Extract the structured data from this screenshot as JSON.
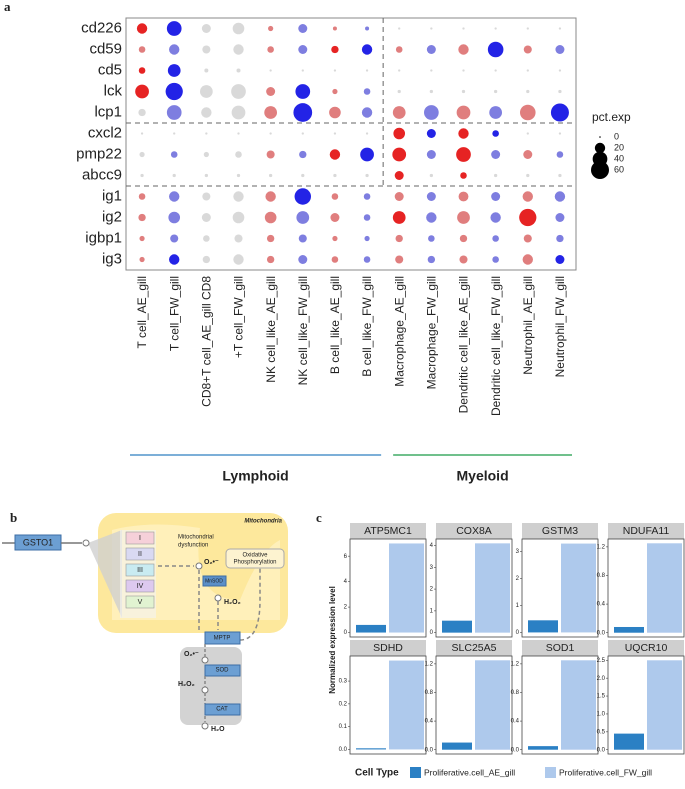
{
  "chart_data": [
    {
      "type": "dot",
      "panel_label": "a",
      "rows": [
        "cd226",
        "cd59",
        "cd5",
        "lck",
        "lcp1",
        "cxcl2",
        "pmp22",
        "abcc9",
        "ig1",
        "ig2",
        "igbp1",
        "ig3"
      ],
      "columns": [
        "T cell_AE_gill",
        "T cell_FW_gill",
        "CD8+T cell_AE_gill CD8",
        "+T cell_FW_gill",
        "NK cell_like_AE_gill",
        "NK cell_like_FW_gill",
        "B cell_like_AE_gill",
        "B cell_like_FW_gill",
        "Macrophage_AE_gill",
        "Macrophage_FW_gill",
        "Dendritic cell_like_AE_gill",
        "Dendritic cell_like_FW_gill",
        "Neutrophil_AE_gill",
        "Neutrophil_FW_gill"
      ],
      "pct": [
        [
          20,
          40,
          15,
          25,
          5,
          15,
          3,
          3,
          1,
          1,
          1,
          1,
          1,
          1
        ],
        [
          8,
          20,
          12,
          20,
          8,
          15,
          10,
          20,
          8,
          15,
          20,
          45,
          12,
          15
        ],
        [
          8,
          30,
          3,
          3,
          1,
          1,
          1,
          1,
          1,
          1,
          1,
          1,
          1,
          1
        ],
        [
          35,
          55,
          30,
          40,
          15,
          40,
          5,
          8,
          2,
          2,
          2,
          2,
          2,
          2
        ],
        [
          10,
          40,
          20,
          35,
          30,
          65,
          25,
          20,
          30,
          40,
          35,
          30,
          45,
          60
        ],
        [
          1,
          1,
          1,
          1,
          1,
          1,
          1,
          1,
          25,
          15,
          20,
          8,
          1,
          1
        ],
        [
          5,
          8,
          5,
          8,
          12,
          10,
          20,
          35,
          35,
          15,
          40,
          15,
          15,
          8
        ],
        [
          2,
          2,
          2,
          2,
          2,
          2,
          2,
          2,
          15,
          2,
          8,
          2,
          2,
          2
        ],
        [
          8,
          20,
          12,
          20,
          20,
          50,
          8,
          8,
          15,
          15,
          18,
          15,
          20,
          20
        ],
        [
          10,
          25,
          15,
          25,
          25,
          30,
          15,
          8,
          30,
          20,
          30,
          20,
          55,
          15
        ],
        [
          5,
          12,
          8,
          12,
          10,
          12,
          5,
          5,
          10,
          8,
          10,
          8,
          12,
          10
        ],
        [
          5,
          20,
          10,
          20,
          10,
          15,
          8,
          8,
          12,
          10,
          12,
          8,
          20,
          15
        ]
      ],
      "avg": [
        [
          2,
          -2,
          0,
          0,
          1,
          -1,
          1,
          -1,
          0,
          0,
          0,
          0,
          0,
          0
        ],
        [
          1,
          -1,
          0,
          0,
          1,
          -1,
          2,
          -2,
          1,
          -1,
          1,
          -2,
          1,
          -1
        ],
        [
          2,
          -2,
          0,
          0,
          0,
          0,
          0,
          0,
          0,
          0,
          0,
          0,
          0,
          0
        ],
        [
          2,
          -2,
          0,
          0,
          1,
          -2,
          1,
          -1,
          0,
          0,
          0,
          0,
          0,
          0
        ],
        [
          0,
          -1,
          0,
          0,
          1,
          -2,
          1,
          -1,
          1,
          -1,
          1,
          -1,
          1,
          -2
        ],
        [
          0,
          0,
          0,
          0,
          0,
          0,
          0,
          0,
          2,
          -2,
          2,
          -2,
          0,
          0
        ],
        [
          0,
          -1,
          0,
          0,
          1,
          -1,
          2,
          -2,
          2,
          -1,
          2,
          -1,
          1,
          -1
        ],
        [
          0,
          0,
          0,
          0,
          0,
          0,
          0,
          0,
          2,
          0,
          2,
          0,
          0,
          0
        ],
        [
          1,
          -1,
          0,
          0,
          1,
          -2,
          1,
          -1,
          1,
          -1,
          1,
          -1,
          1,
          -1
        ],
        [
          1,
          -1,
          0,
          0,
          1,
          -1,
          1,
          -1,
          2,
          -1,
          1,
          -1,
          2,
          -1
        ],
        [
          1,
          -1,
          0,
          0,
          1,
          -1,
          1,
          -1,
          1,
          -1,
          1,
          -1,
          1,
          -1
        ],
        [
          1,
          -2,
          0,
          0,
          1,
          -1,
          1,
          -1,
          1,
          -1,
          1,
          -1,
          1,
          -2
        ]
      ],
      "avg_range": [
        -2,
        2
      ],
      "colors": {
        "low": "#2323e6",
        "mid": "#d9d9d9",
        "high": "#e62323"
      },
      "size_legend": {
        "title": "pct.exp",
        "values": [
          0,
          20,
          40,
          60
        ]
      },
      "groups": [
        {
          "name": "Lymphoid",
          "color": "#2f7fc1"
        },
        {
          "name": "Myeloid",
          "color": "#1a9b48"
        }
      ]
    },
    {
      "type": "bar",
      "panel_label": "c",
      "ylabel": "Normalized expression level",
      "legend": {
        "title": "Cell Type",
        "entries": [
          {
            "name": "Proliferative.cell_AE_gill",
            "color": "#2b80c4"
          },
          {
            "name": "Proliferative.cell_FW_gill",
            "color": "#aec9ec"
          }
        ]
      },
      "charts": [
        {
          "title": "ATP5MC1",
          "values": [
            0.6,
            7.0
          ],
          "ylim": [
            -0.35,
            7.35
          ],
          "yticks": [
            0,
            2,
            4,
            6
          ]
        },
        {
          "title": "COX8A",
          "values": [
            0.55,
            4.1
          ],
          "ylim": [
            -0.2,
            4.3
          ],
          "yticks": [
            0,
            1,
            2,
            3,
            4
          ]
        },
        {
          "title": "GSTM3",
          "values": [
            0.45,
            3.3
          ],
          "ylim": [
            -0.17,
            3.47
          ],
          "yticks": [
            0,
            1,
            2,
            3
          ]
        },
        {
          "title": "NDUFA11",
          "values": [
            0.08,
            1.25
          ],
          "ylim": [
            -0.06,
            1.31
          ],
          "yticks": [
            {
              "value": 0,
              "label": "0.0"
            },
            0.4,
            0.8,
            1.2
          ]
        },
        {
          "title": "SDHD",
          "values": [
            0.005,
            0.39
          ],
          "ylim": [
            -0.02,
            0.41
          ],
          "yticks": [
            {
              "value": 0,
              "label": "0.0"
            },
            0.1,
            0.2,
            0.3
          ]
        },
        {
          "title": "SLC25A5",
          "values": [
            0.1,
            1.25
          ],
          "ylim": [
            -0.06,
            1.31
          ],
          "yticks": [
            {
              "value": 0,
              "label": "0.0"
            },
            0.4,
            0.8,
            1.2
          ]
        },
        {
          "title": "SOD1",
          "values": [
            0.05,
            1.25
          ],
          "ylim": [
            -0.06,
            1.31
          ],
          "yticks": [
            {
              "value": 0,
              "label": "0.0"
            },
            0.4,
            0.8,
            1.2
          ]
        },
        {
          "title": "UQCR10",
          "values": [
            0.45,
            2.5
          ],
          "ylim": [
            -0.12,
            2.62
          ],
          "yticks": [
            {
              "value": 0,
              "label": "0.0"
            },
            0.5,
            {
              "value": 1,
              "label": "1.0"
            },
            1.5,
            {
              "value": 2,
              "label": "2.0"
            },
            2.5
          ]
        }
      ]
    }
  ],
  "diagram": {
    "panel_label": "b",
    "gsto1": "GSTO1",
    "mitochondria": "Mitochondria",
    "dysfunction": [
      "Mitochondrial",
      "dysfunction"
    ],
    "complexes": [
      "I",
      "II",
      "III",
      "IV",
      "V"
    ],
    "superoxide": "O₂•⁻",
    "oxphos": [
      "Oxidative",
      "Phosphorylation"
    ],
    "mnsod": "MnSOD",
    "h2o2": "H₂O₂",
    "mptp": "MPTP",
    "superoxide2": "O₂•⁻",
    "sod": "SOD",
    "h2o2_2": "H₂O₂",
    "cat": "CAT",
    "h2o": "H₂O"
  }
}
